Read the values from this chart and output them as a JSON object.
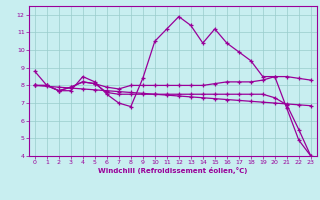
{
  "xlabel": "Windchill (Refroidissement éolien,°C)",
  "xlim": [
    -0.5,
    23.5
  ],
  "ylim": [
    4,
    12.5
  ],
  "xticks": [
    0,
    1,
    2,
    3,
    4,
    5,
    6,
    7,
    8,
    9,
    10,
    11,
    12,
    13,
    14,
    15,
    16,
    17,
    18,
    19,
    20,
    21,
    22,
    23
  ],
  "yticks": [
    4,
    5,
    6,
    7,
    8,
    9,
    10,
    11,
    12
  ],
  "bg_color": "#c8eef0",
  "line_color": "#990099",
  "grid_color": "#99cccc",
  "lines": [
    [
      8.8,
      8.0,
      7.7,
      7.7,
      8.5,
      8.2,
      7.5,
      7.0,
      6.8,
      8.4,
      10.5,
      11.2,
      11.9,
      11.4,
      10.4,
      11.2,
      10.4,
      9.9,
      9.4,
      8.5,
      8.5,
      6.7,
      4.9,
      4.0
    ],
    [
      8.0,
      8.0,
      7.7,
      7.9,
      8.2,
      8.1,
      7.9,
      7.8,
      8.0,
      8.0,
      8.0,
      8.0,
      8.0,
      8.0,
      8.0,
      8.1,
      8.2,
      8.2,
      8.2,
      8.3,
      8.5,
      8.5,
      8.4,
      8.3
    ],
    [
      8.0,
      7.95,
      7.9,
      7.85,
      7.8,
      7.75,
      7.7,
      7.65,
      7.6,
      7.55,
      7.5,
      7.45,
      7.4,
      7.35,
      7.3,
      7.25,
      7.2,
      7.15,
      7.1,
      7.05,
      7.0,
      6.95,
      6.9,
      6.85
    ],
    [
      8.0,
      8.0,
      7.7,
      7.9,
      8.2,
      8.1,
      7.6,
      7.5,
      7.5,
      7.5,
      7.5,
      7.5,
      7.5,
      7.5,
      7.5,
      7.5,
      7.5,
      7.5,
      7.5,
      7.5,
      7.3,
      6.9,
      5.5,
      4.0
    ]
  ]
}
